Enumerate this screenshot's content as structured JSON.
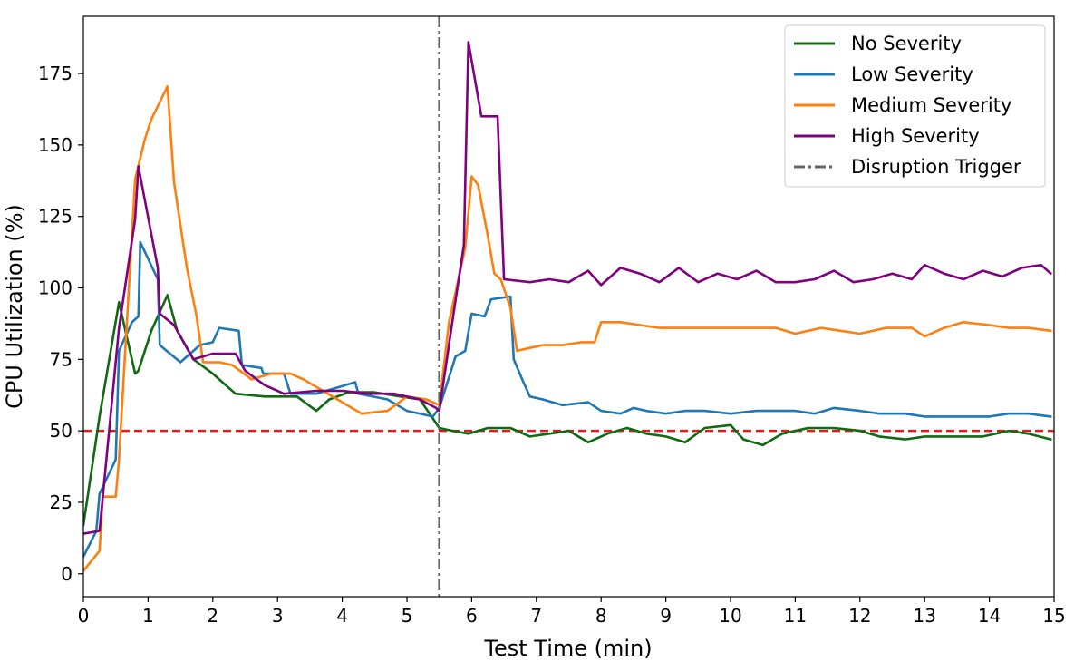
{
  "chart_data": {
    "type": "line",
    "title": "",
    "xlabel": "Test Time (min)",
    "ylabel": "CPU Utilization (%)",
    "xlim": [
      0,
      15
    ],
    "ylim": [
      -8,
      195
    ],
    "xticks": [
      0,
      1,
      2,
      3,
      4,
      5,
      6,
      7,
      8,
      9,
      10,
      11,
      12,
      13,
      14,
      15
    ],
    "yticks": [
      0,
      25,
      50,
      75,
      100,
      125,
      150,
      175
    ],
    "grid": false,
    "legend_position": "top-right",
    "threshold": {
      "y": 50,
      "color": "#e41a1c",
      "style": "dashed"
    },
    "disruption": {
      "x": 5.5,
      "label": "Disruption Trigger",
      "color": "#666666",
      "style": "dash-dot"
    },
    "series": [
      {
        "name": "No Severity",
        "color": "#116911",
        "points": [
          [
            0,
            17
          ],
          [
            0.25,
            55
          ],
          [
            0.55,
            95
          ],
          [
            0.8,
            70
          ],
          [
            0.85,
            71
          ],
          [
            1.05,
            85
          ],
          [
            1.3,
            97.5
          ],
          [
            1.45,
            85
          ],
          [
            1.7,
            75
          ],
          [
            2.0,
            70
          ],
          [
            2.35,
            63
          ],
          [
            2.8,
            62
          ],
          [
            3.3,
            62
          ],
          [
            3.6,
            57
          ],
          [
            3.8,
            61
          ],
          [
            4.1,
            63.5
          ],
          [
            4.5,
            63.5
          ],
          [
            4.9,
            62
          ],
          [
            5.2,
            61
          ],
          [
            5.5,
            51
          ],
          [
            5.7,
            50
          ],
          [
            5.95,
            49
          ],
          [
            6.25,
            51
          ],
          [
            6.6,
            51
          ],
          [
            6.9,
            48
          ],
          [
            7.2,
            49
          ],
          [
            7.5,
            50
          ],
          [
            7.8,
            46
          ],
          [
            8.1,
            49
          ],
          [
            8.4,
            51
          ],
          [
            8.7,
            49
          ],
          [
            9.0,
            48
          ],
          [
            9.3,
            46
          ],
          [
            9.6,
            51
          ],
          [
            10.0,
            52
          ],
          [
            10.2,
            47
          ],
          [
            10.5,
            45
          ],
          [
            10.8,
            49
          ],
          [
            11.2,
            51
          ],
          [
            11.6,
            51
          ],
          [
            12.0,
            50
          ],
          [
            12.3,
            48
          ],
          [
            12.7,
            47
          ],
          [
            13.0,
            48
          ],
          [
            13.5,
            48
          ],
          [
            13.9,
            48
          ],
          [
            14.3,
            50
          ],
          [
            14.6,
            49
          ],
          [
            14.95,
            47
          ]
        ]
      },
      {
        "name": "Low Severity",
        "color": "#1f77b4",
        "points": [
          [
            0,
            6
          ],
          [
            0.2,
            15
          ],
          [
            0.25,
            28
          ],
          [
            0.5,
            40
          ],
          [
            0.55,
            78
          ],
          [
            0.75,
            88
          ],
          [
            0.85,
            90
          ],
          [
            0.88,
            116
          ],
          [
            1.15,
            103
          ],
          [
            1.18,
            80
          ],
          [
            1.5,
            74
          ],
          [
            1.8,
            80
          ],
          [
            2.0,
            81
          ],
          [
            2.1,
            86
          ],
          [
            2.4,
            85
          ],
          [
            2.45,
            73
          ],
          [
            2.75,
            72
          ],
          [
            2.78,
            70
          ],
          [
            3.1,
            70
          ],
          [
            3.2,
            63
          ],
          [
            3.6,
            63
          ],
          [
            3.9,
            65
          ],
          [
            4.2,
            67
          ],
          [
            4.25,
            63
          ],
          [
            4.7,
            61
          ],
          [
            5.0,
            57
          ],
          [
            5.4,
            55
          ],
          [
            5.5,
            58
          ],
          [
            5.75,
            76
          ],
          [
            5.9,
            78
          ],
          [
            6.0,
            91
          ],
          [
            6.2,
            90
          ],
          [
            6.3,
            96
          ],
          [
            6.6,
            97
          ],
          [
            6.65,
            75
          ],
          [
            6.8,
            67
          ],
          [
            6.9,
            62
          ],
          [
            7.1,
            61
          ],
          [
            7.4,
            59
          ],
          [
            7.8,
            60
          ],
          [
            8.0,
            57
          ],
          [
            8.3,
            56
          ],
          [
            8.5,
            58
          ],
          [
            8.7,
            57
          ],
          [
            9.0,
            56
          ],
          [
            9.3,
            57
          ],
          [
            9.6,
            57
          ],
          [
            10.0,
            56
          ],
          [
            10.4,
            57
          ],
          [
            10.8,
            57
          ],
          [
            11.0,
            57
          ],
          [
            11.3,
            56
          ],
          [
            11.6,
            58
          ],
          [
            12.0,
            57
          ],
          [
            12.3,
            56
          ],
          [
            12.7,
            56
          ],
          [
            13.0,
            55
          ],
          [
            13.3,
            55
          ],
          [
            13.6,
            55
          ],
          [
            14.0,
            55
          ],
          [
            14.3,
            56
          ],
          [
            14.6,
            56
          ],
          [
            14.95,
            55
          ]
        ]
      },
      {
        "name": "Medium Severity",
        "color": "#ff7f0e",
        "points": [
          [
            0,
            1
          ],
          [
            0.25,
            8
          ],
          [
            0.3,
            27
          ],
          [
            0.5,
            27
          ],
          [
            0.55,
            40
          ],
          [
            0.8,
            138
          ],
          [
            0.95,
            152
          ],
          [
            1.05,
            159
          ],
          [
            1.3,
            170.5
          ],
          [
            1.4,
            137
          ],
          [
            1.6,
            107
          ],
          [
            1.75,
            90
          ],
          [
            1.85,
            74
          ],
          [
            2.1,
            74
          ],
          [
            2.3,
            73
          ],
          [
            2.6,
            68
          ],
          [
            2.9,
            70
          ],
          [
            3.2,
            70
          ],
          [
            3.4,
            68
          ],
          [
            3.7,
            64
          ],
          [
            4.0,
            60
          ],
          [
            4.3,
            56
          ],
          [
            4.7,
            57
          ],
          [
            5.0,
            62
          ],
          [
            5.3,
            61
          ],
          [
            5.5,
            59
          ],
          [
            5.65,
            88
          ],
          [
            5.9,
            114
          ],
          [
            6.0,
            139
          ],
          [
            6.1,
            136
          ],
          [
            6.25,
            118
          ],
          [
            6.35,
            105
          ],
          [
            6.45,
            103
          ],
          [
            6.6,
            93
          ],
          [
            6.7,
            78
          ],
          [
            6.9,
            79
          ],
          [
            7.1,
            80
          ],
          [
            7.4,
            80
          ],
          [
            7.7,
            81
          ],
          [
            7.9,
            81
          ],
          [
            8.0,
            88
          ],
          [
            8.3,
            88
          ],
          [
            8.6,
            87
          ],
          [
            8.9,
            86
          ],
          [
            9.2,
            86
          ],
          [
            9.6,
            86
          ],
          [
            10.0,
            86
          ],
          [
            10.3,
            86
          ],
          [
            10.7,
            86
          ],
          [
            11.0,
            84
          ],
          [
            11.4,
            86
          ],
          [
            11.7,
            85
          ],
          [
            12.0,
            84
          ],
          [
            12.4,
            86
          ],
          [
            12.8,
            86
          ],
          [
            13.0,
            83
          ],
          [
            13.3,
            86
          ],
          [
            13.6,
            88
          ],
          [
            14.0,
            87
          ],
          [
            14.3,
            86
          ],
          [
            14.6,
            86
          ],
          [
            14.95,
            85
          ]
        ]
      },
      {
        "name": "High Severity",
        "color": "#800080",
        "points": [
          [
            0,
            14
          ],
          [
            0.25,
            15
          ],
          [
            0.55,
            86
          ],
          [
            0.8,
            124
          ],
          [
            0.85,
            142.5
          ],
          [
            1.15,
            107
          ],
          [
            1.18,
            91
          ],
          [
            1.4,
            87
          ],
          [
            1.7,
            75
          ],
          [
            2.0,
            77
          ],
          [
            2.35,
            77
          ],
          [
            2.5,
            71
          ],
          [
            2.8,
            66
          ],
          [
            3.1,
            63
          ],
          [
            3.6,
            64
          ],
          [
            4.0,
            64
          ],
          [
            4.4,
            63
          ],
          [
            4.8,
            63
          ],
          [
            5.2,
            61
          ],
          [
            5.45,
            58
          ],
          [
            5.5,
            57
          ],
          [
            5.7,
            88
          ],
          [
            5.88,
            115
          ],
          [
            5.95,
            186
          ],
          [
            6.15,
            160
          ],
          [
            6.4,
            160
          ],
          [
            6.5,
            103
          ],
          [
            6.9,
            102
          ],
          [
            7.2,
            103
          ],
          [
            7.5,
            102
          ],
          [
            7.8,
            106
          ],
          [
            8.0,
            101
          ],
          [
            8.3,
            107
          ],
          [
            8.6,
            105
          ],
          [
            8.9,
            102
          ],
          [
            9.2,
            107
          ],
          [
            9.5,
            102
          ],
          [
            9.8,
            105
          ],
          [
            10.1,
            103
          ],
          [
            10.4,
            106
          ],
          [
            10.7,
            102
          ],
          [
            11.0,
            102
          ],
          [
            11.3,
            103
          ],
          [
            11.6,
            106
          ],
          [
            11.9,
            102
          ],
          [
            12.2,
            103
          ],
          [
            12.5,
            105
          ],
          [
            12.8,
            103
          ],
          [
            13.0,
            108
          ],
          [
            13.3,
            105
          ],
          [
            13.6,
            103
          ],
          [
            13.9,
            106
          ],
          [
            14.2,
            104
          ],
          [
            14.5,
            107
          ],
          [
            14.8,
            108
          ],
          [
            14.95,
            105
          ]
        ]
      }
    ]
  }
}
